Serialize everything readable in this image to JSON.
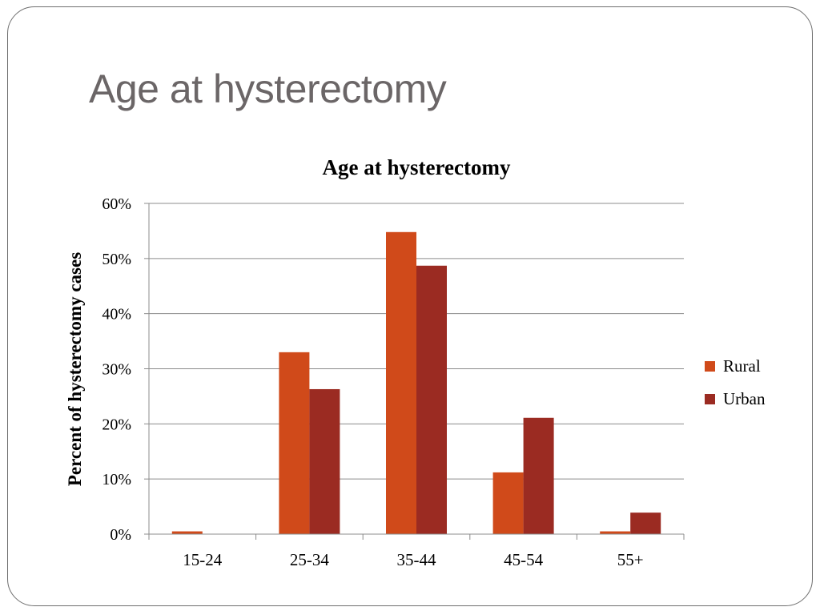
{
  "slide": {
    "title": "Age at hysterectomy"
  },
  "chart_data": {
    "type": "bar",
    "title": "Age at hysterectomy",
    "xlabel": "",
    "ylabel": "Percent of hysterectomy cases",
    "categories": [
      "15-24",
      "25-34",
      "35-44",
      "45-54",
      "55+"
    ],
    "series": [
      {
        "name": "Rural",
        "values": [
          0.5,
          33,
          54.8,
          11.2,
          0.5
        ],
        "color": "#d04a1a"
      },
      {
        "name": "Urban",
        "values": [
          0,
          26.3,
          48.7,
          21.1,
          3.9
        ],
        "color": "#9b2b22"
      }
    ],
    "ylim": [
      0,
      60
    ],
    "yticks": [
      0,
      10,
      20,
      30,
      40,
      50,
      60
    ],
    "ytick_labels": [
      "0%",
      "10%",
      "20%",
      "30%",
      "40%",
      "50%",
      "60%"
    ],
    "grid": true,
    "legend_position": "right"
  }
}
